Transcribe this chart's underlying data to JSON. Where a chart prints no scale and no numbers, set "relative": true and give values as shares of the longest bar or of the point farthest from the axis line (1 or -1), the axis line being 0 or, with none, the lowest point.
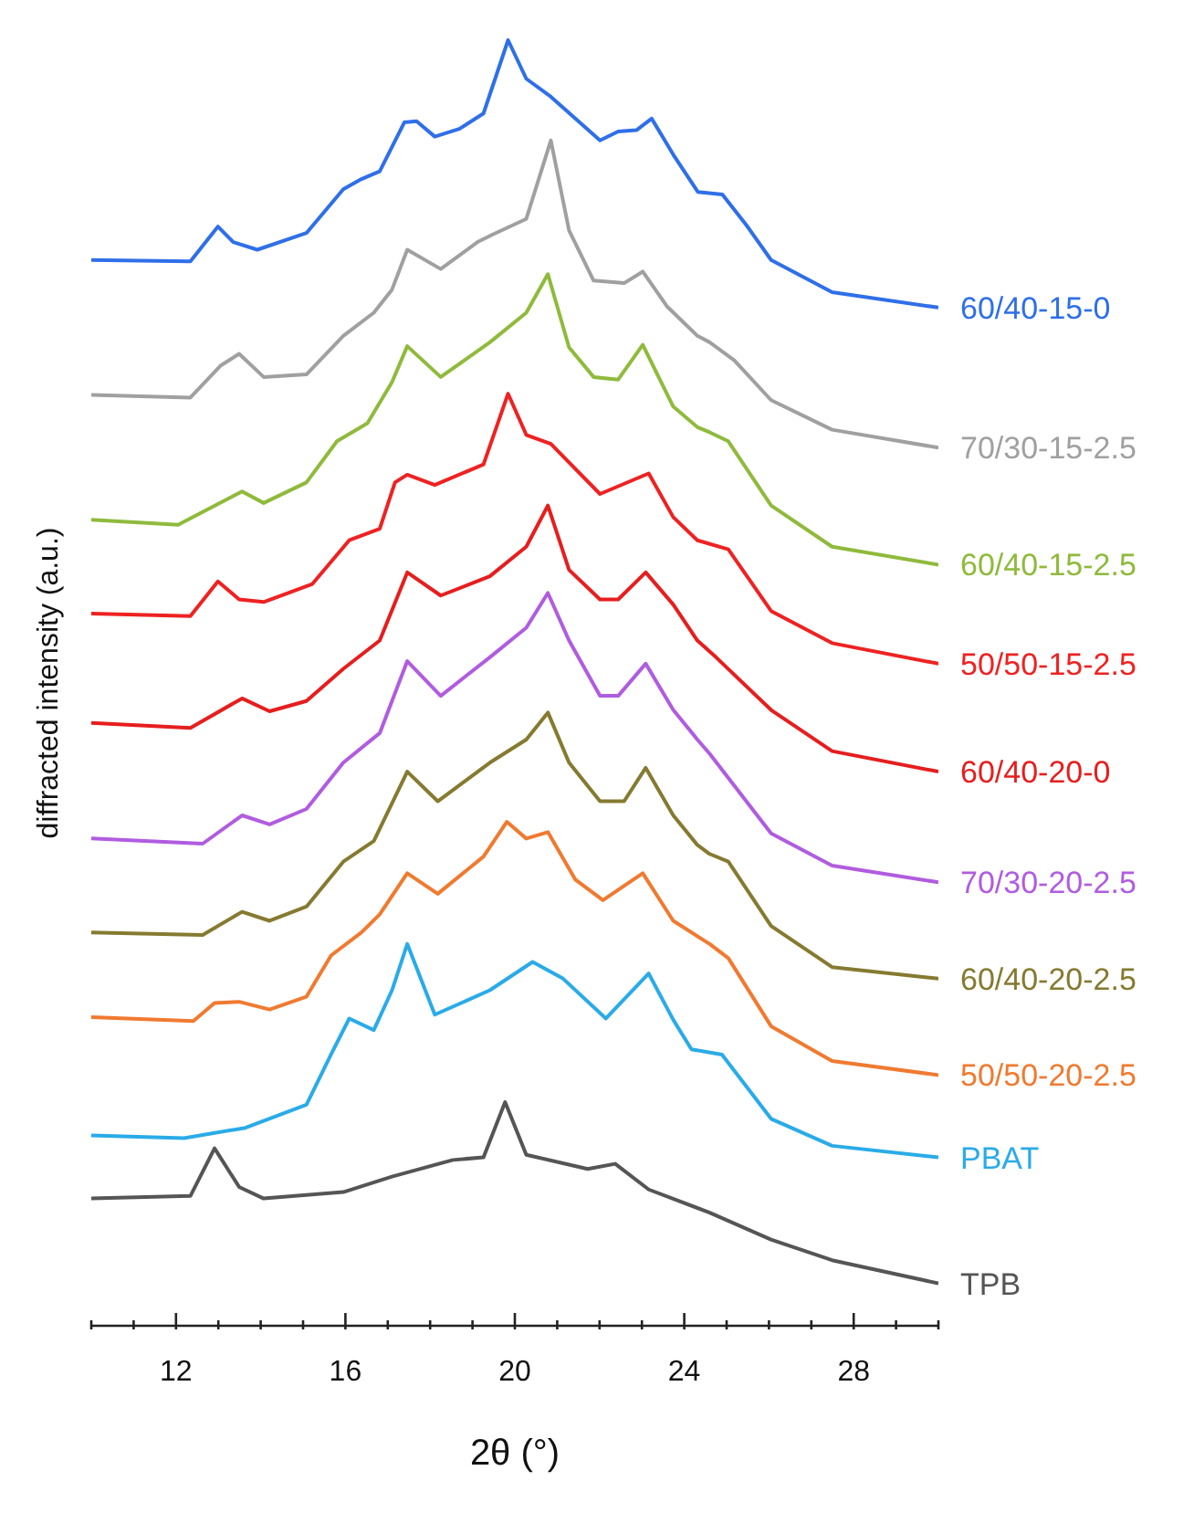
{
  "chart_data": {
    "type": "line",
    "xlabel": "2θ (°)",
    "ylabel": "diffracted intensity (a.u.)",
    "relative": true,
    "marker": "none",
    "xlim": [
      10,
      30
    ],
    "xticks": [
      {
        "value": 10,
        "label": null
      },
      {
        "value": 11,
        "label": null
      },
      12,
      {
        "value": 13,
        "label": null
      },
      {
        "value": 14,
        "label": null
      },
      {
        "value": 15,
        "label": null
      },
      16,
      {
        "value": 17,
        "label": null
      },
      {
        "value": 18,
        "label": null
      },
      {
        "value": 19,
        "label": null
      },
      20,
      {
        "value": 21,
        "label": null
      },
      {
        "value": 22,
        "label": null
      },
      {
        "value": 23,
        "label": null
      },
      24,
      {
        "value": 25,
        "label": null
      },
      {
        "value": 26,
        "label": null
      },
      {
        "value": 27,
        "label": null
      },
      28,
      {
        "value": 29,
        "label": null
      },
      {
        "value": 30,
        "label": null
      }
    ],
    "series": [
      {
        "name": "60/40-15-0",
        "color": "#2f6fe8",
        "x": [
          10,
          12.34,
          12.99,
          13.35,
          13.92,
          15.08,
          15.95,
          16.38,
          16.81,
          17.39,
          17.68,
          18.11,
          18.69,
          19.26,
          19.84,
          20.27,
          20.85,
          22.01,
          22.44,
          22.87,
          23.23,
          23.74,
          24.32,
          24.9,
          25.47,
          26.05,
          27.49,
          30
        ],
        "values": [
          0.829,
          0.828,
          0.855,
          0.843,
          0.837,
          0.85,
          0.884,
          0.892,
          0.898,
          0.936,
          0.937,
          0.925,
          0.931,
          0.943,
          1.0,
          0.97,
          0.956,
          0.922,
          0.929,
          0.93,
          0.939,
          0.911,
          0.882,
          0.88,
          0.856,
          0.829,
          0.804,
          0.792
        ]
      },
      {
        "name": "70/30-15-2.5",
        "color": "#a0a0a0",
        "x": [
          10,
          12.34,
          13.06,
          13.49,
          14.07,
          15.08,
          15.95,
          16.67,
          17.1,
          17.46,
          18.25,
          19.12,
          19.55,
          20.27,
          20.85,
          21.28,
          21.86,
          22.58,
          23.02,
          23.59,
          24.31,
          24.6,
          25.18,
          26.05,
          27.49,
          30
        ],
        "values": [
          0.724,
          0.722,
          0.747,
          0.756,
          0.738,
          0.74,
          0.77,
          0.788,
          0.806,
          0.837,
          0.822,
          0.843,
          0.85,
          0.861,
          0.922,
          0.852,
          0.813,
          0.811,
          0.82,
          0.793,
          0.77,
          0.765,
          0.751,
          0.72,
          0.697,
          0.683
        ]
      },
      {
        "name": "60/40-15-2.5",
        "color": "#8fba3c",
        "x": [
          10,
          12.05,
          13.56,
          14.07,
          15.08,
          15.8,
          16.52,
          17.1,
          17.46,
          18.25,
          19.41,
          20.27,
          20.78,
          21.28,
          21.86,
          22.44,
          23.02,
          23.74,
          24.31,
          24.6,
          25.04,
          26.05,
          27.49,
          30
        ],
        "values": [
          0.627,
          0.623,
          0.649,
          0.64,
          0.656,
          0.688,
          0.702,
          0.734,
          0.762,
          0.738,
          0.765,
          0.788,
          0.818,
          0.761,
          0.738,
          0.736,
          0.763,
          0.715,
          0.699,
          0.695,
          0.688,
          0.638,
          0.606,
          0.592
        ]
      },
      {
        "name": "50/50-15-2.5",
        "color": "#ee2222",
        "x": [
          10,
          12.34,
          12.99,
          13.49,
          14.07,
          15.22,
          16.09,
          16.81,
          17.17,
          17.46,
          18.11,
          19.26,
          19.84,
          20.27,
          20.85,
          22.01,
          23.16,
          23.74,
          24.31,
          25.04,
          26.05,
          27.49,
          30
        ],
        "values": [
          0.554,
          0.552,
          0.579,
          0.565,
          0.563,
          0.577,
          0.611,
          0.62,
          0.656,
          0.662,
          0.654,
          0.67,
          0.725,
          0.693,
          0.686,
          0.647,
          0.663,
          0.629,
          0.611,
          0.604,
          0.556,
          0.531,
          0.515
        ]
      },
      {
        "name": "60/40-20-0",
        "color": "#e61e1e",
        "x": [
          10,
          12.34,
          13.56,
          14.21,
          15.08,
          15.95,
          16.81,
          17.46,
          18.25,
          19.41,
          20.27,
          20.78,
          21.28,
          22.01,
          22.44,
          23.09,
          23.74,
          24.31,
          24.75,
          26.05,
          27.49,
          30
        ],
        "values": [
          0.469,
          0.465,
          0.488,
          0.478,
          0.486,
          0.511,
          0.533,
          0.586,
          0.568,
          0.583,
          0.606,
          0.638,
          0.588,
          0.565,
          0.565,
          0.586,
          0.561,
          0.533,
          0.52,
          0.479,
          0.447,
          0.431
        ]
      },
      {
        "name": "70/30-20-2.5",
        "color": "#b05ce0",
        "x": [
          10,
          12.63,
          13.56,
          14.21,
          15.08,
          15.95,
          16.81,
          17.46,
          18.25,
          19.41,
          20.27,
          20.78,
          21.28,
          22.01,
          22.44,
          23.09,
          23.74,
          24.31,
          24.6,
          26.05,
          27.49,
          30
        ],
        "values": [
          0.379,
          0.375,
          0.397,
          0.39,
          0.402,
          0.438,
          0.461,
          0.517,
          0.49,
          0.52,
          0.543,
          0.57,
          0.533,
          0.49,
          0.49,
          0.515,
          0.479,
          0.456,
          0.445,
          0.383,
          0.358,
          0.345
        ]
      },
      {
        "name": "60/40-20-2.5",
        "color": "#857a30",
        "x": [
          10,
          12.63,
          13.56,
          14.21,
          15.08,
          15.95,
          16.67,
          17.46,
          18.18,
          19.41,
          20.27,
          20.78,
          21.28,
          22.01,
          22.58,
          23.09,
          23.74,
          24.31,
          24.6,
          25.04,
          26.05,
          27.49,
          30
        ],
        "values": [
          0.306,
          0.304,
          0.322,
          0.315,
          0.326,
          0.361,
          0.377,
          0.431,
          0.408,
          0.438,
          0.456,
          0.477,
          0.438,
          0.408,
          0.408,
          0.434,
          0.397,
          0.374,
          0.367,
          0.361,
          0.311,
          0.279,
          0.27
        ]
      },
      {
        "name": "50/50-20-2.5",
        "color": "#f07a30",
        "x": [
          10,
          12.41,
          12.91,
          13.49,
          14.21,
          15.08,
          15.66,
          16.38,
          16.81,
          17.46,
          18.18,
          19.26,
          19.81,
          20.27,
          20.78,
          21.43,
          22.08,
          23.02,
          23.74,
          24.6,
          25.04,
          26.05,
          27.49,
          30
        ],
        "values": [
          0.24,
          0.237,
          0.251,
          0.252,
          0.246,
          0.256,
          0.288,
          0.306,
          0.32,
          0.352,
          0.336,
          0.365,
          0.392,
          0.379,
          0.384,
          0.347,
          0.331,
          0.352,
          0.315,
          0.297,
          0.286,
          0.233,
          0.206,
          0.195
        ]
      },
      {
        "name": "PBAT",
        "color": "#2aabe8",
        "x": [
          10,
          12.19,
          13.64,
          15.08,
          15.66,
          16.09,
          16.67,
          17.1,
          17.46,
          18.11,
          19.41,
          20.42,
          21.14,
          22.15,
          23.16,
          23.74,
          24.17,
          24.89,
          26.05,
          27.49,
          30
        ],
        "values": [
          0.148,
          0.146,
          0.154,
          0.172,
          0.211,
          0.239,
          0.23,
          0.261,
          0.297,
          0.242,
          0.261,
          0.283,
          0.27,
          0.239,
          0.274,
          0.238,
          0.215,
          0.211,
          0.161,
          0.14,
          0.131
        ]
      },
      {
        "name": "TPB",
        "color": "#555555",
        "x": [
          10,
          12.34,
          12.91,
          13.49,
          14.07,
          15.95,
          17.1,
          18.54,
          19.26,
          19.77,
          20.27,
          21.72,
          22.37,
          23.16,
          24.6,
          26.05,
          27.49,
          30
        ],
        "values": [
          0.099,
          0.101,
          0.138,
          0.108,
          0.099,
          0.104,
          0.116,
          0.129,
          0.131,
          0.174,
          0.133,
          0.122,
          0.126,
          0.106,
          0.088,
          0.067,
          0.051,
          0.033
        ]
      }
    ]
  }
}
